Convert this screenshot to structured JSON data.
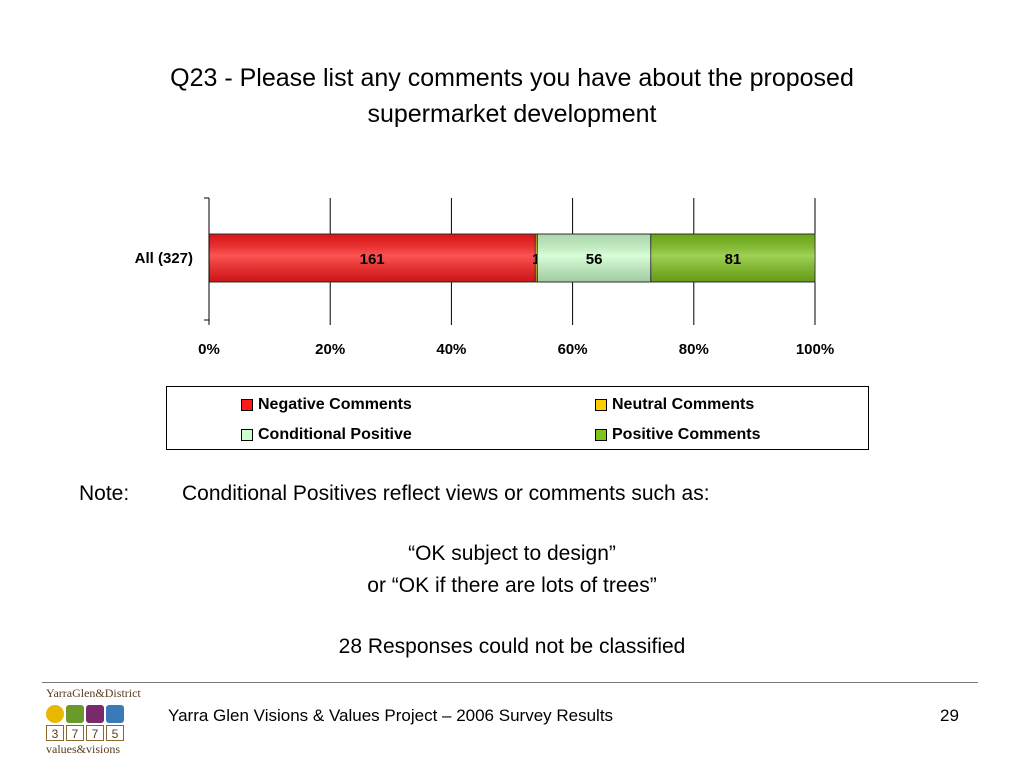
{
  "title_line1": "Q23 - Please list any comments you have about the proposed",
  "title_line2": "supermarket development",
  "chart_data": {
    "type": "bar",
    "orientation": "horizontal",
    "stacked": "percent",
    "categories": [
      "All (327)"
    ],
    "series": [
      {
        "name": "Negative Comments",
        "values": [
          161
        ],
        "color": "#ff1a1a"
      },
      {
        "name": "Neutral Comments",
        "values": [
          1
        ],
        "color": "#ffcc00"
      },
      {
        "name": "Conditional Positive",
        "values": [
          56
        ],
        "color": "#ccffcc"
      },
      {
        "name": "Positive Comments",
        "values": [
          81
        ],
        "color": "#7fc31c"
      }
    ],
    "xticks": [
      "0%",
      "20%",
      "40%",
      "60%",
      "80%",
      "100%"
    ],
    "xlim": [
      0,
      100
    ],
    "grid": true,
    "legend_position": "bottom"
  },
  "note": {
    "label": "Note:",
    "text": "Conditional Positives reflect views or comments such as:",
    "quote1": "“OK subject to design”",
    "quote2": "or “OK if there are lots of trees”",
    "unclassified": "28 Responses could not be classified"
  },
  "footer": {
    "text": "Yarra Glen Visions & Values Project – 2006 Survey Results",
    "page": "29"
  },
  "logo": {
    "top": "YarraGlen&District",
    "digits": [
      "3",
      "7",
      "7",
      "5"
    ],
    "bottom": "values&visions",
    "icon_colors": [
      "#e8b800",
      "#6a9a2a",
      "#7a2a6a",
      "#3a7ab8"
    ]
  }
}
